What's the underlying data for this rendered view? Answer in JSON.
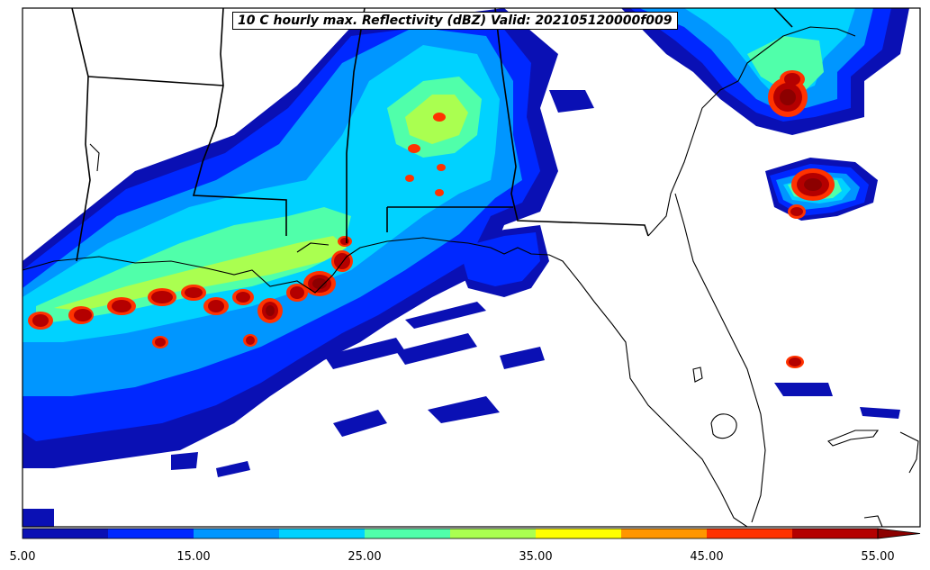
{
  "map": {
    "title": "10 C hourly max. Reflectivity (dBZ) Valid: 202105120000f009"
  },
  "colorbar": {
    "colors": [
      "#0a10b4",
      "#0028ff",
      "#0096ff",
      "#00d2ff",
      "#50ffaa",
      "#aaff50",
      "#ffff00",
      "#ff9600",
      "#ff3200",
      "#b40000"
    ],
    "extend_color": "#8c0000",
    "bounds": [
      5,
      55
    ],
    "tick_labels": [
      "5.00",
      "15.00",
      "25.00",
      "35.00",
      "45.00",
      "55.00"
    ]
  }
}
